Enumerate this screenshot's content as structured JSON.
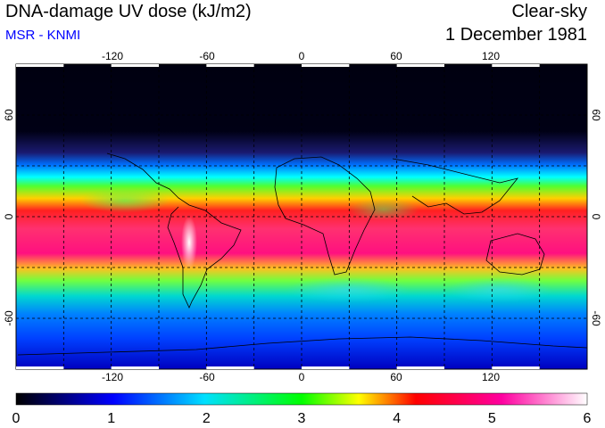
{
  "header": {
    "title": "DNA-damage UV dose (kJ/m2)",
    "subtitle": "MSR - KNMI",
    "condition": "Clear-sky",
    "date": "1 December 1981"
  },
  "map": {
    "lon_ticks": [
      "-120",
      "-60",
      "0",
      "60",
      "120"
    ],
    "lat_ticks_left": [
      "60",
      "0",
      "-60"
    ],
    "lat_ticks_right": [
      "60",
      "0",
      "-60"
    ],
    "lon_range": [
      -180,
      180
    ],
    "lat_range": [
      -90,
      90
    ],
    "grid_spacing_deg": 30
  },
  "colorbar": {
    "labels": [
      "0",
      "1",
      "2",
      "3",
      "4",
      "5",
      "6"
    ],
    "range": [
      0,
      6
    ],
    "colors": [
      "#000000",
      "#0000ff",
      "#00c8ff",
      "#00ff00",
      "#ffff00",
      "#ff0000",
      "#ff00a0",
      "#ffffff"
    ]
  }
}
